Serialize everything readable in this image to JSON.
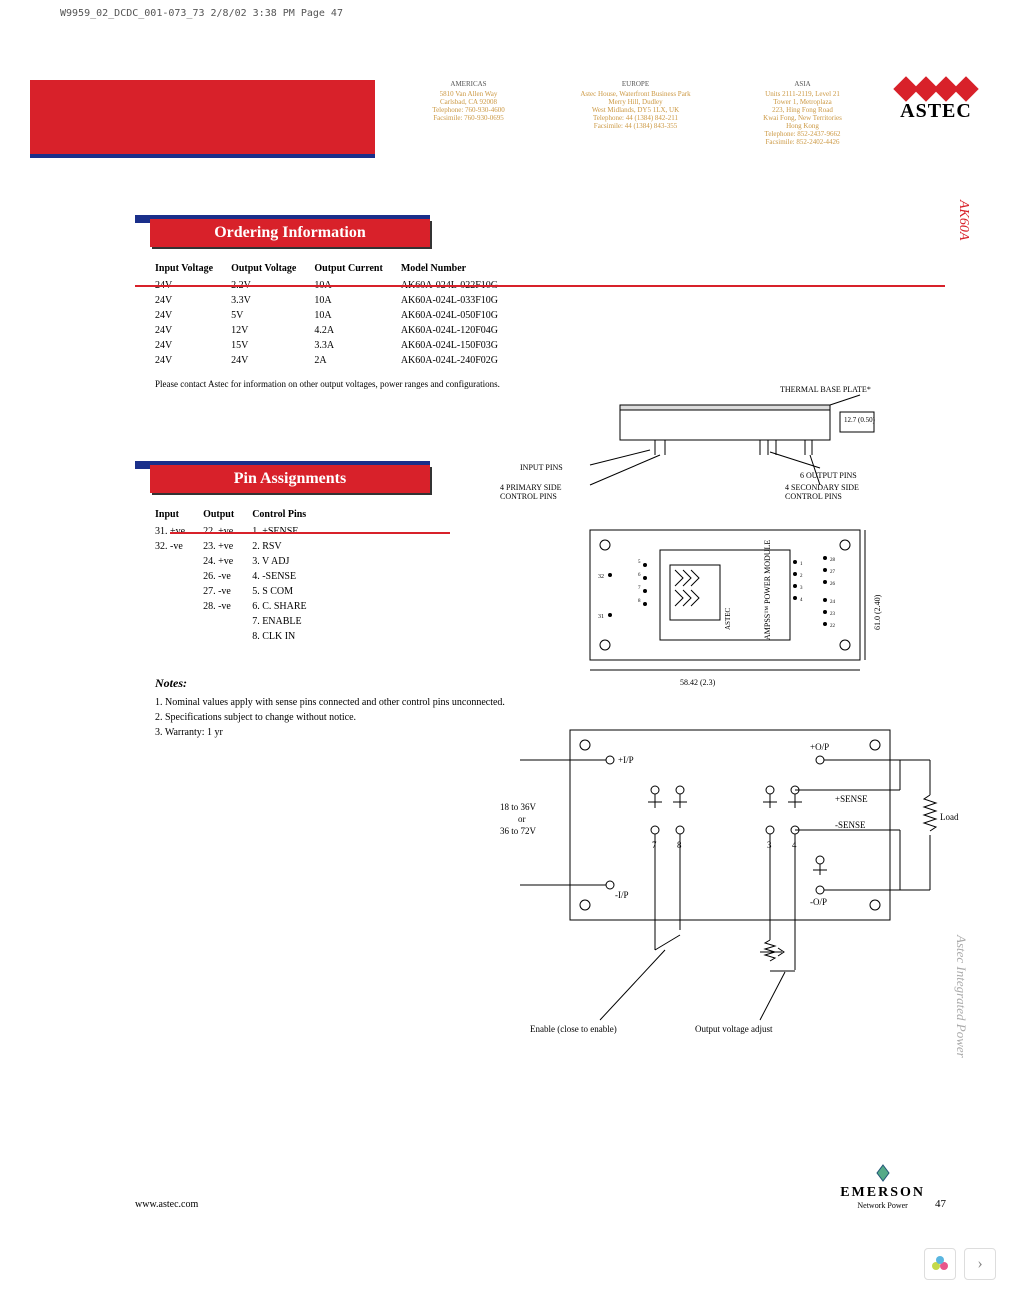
{
  "page_mark": "W9959_02_DCDC_001-073_73  2/8/02  3:38 PM  Page 47",
  "contacts": {
    "americas": {
      "hdr": "AMERICAS",
      "lines": [
        "5810 Van Allen Way",
        "Carlsbad, CA 92008",
        "Telephone: 760-930-4600",
        "Facsimile: 760-930-0695"
      ]
    },
    "europe": {
      "hdr": "EUROPE",
      "lines": [
        "Astec House, Waterfront Business Park",
        "Merry Hill, Dudley",
        "West Midlands, DY5 1LX, UK",
        "Telephone: 44 (1384) 842-211",
        "Facsimile: 44 (1384) 843-355"
      ]
    },
    "asia": {
      "hdr": "ASIA",
      "lines": [
        "Units 2111-2119, Level 21",
        "Tower 1, Metroplaza",
        "223, Hing Fong Road",
        "Kwai Fong, New Territories",
        "Hong Kong",
        "Telephone: 852-2437-9662",
        "Facsimile: 852-2402-4426"
      ]
    }
  },
  "logo_text": "ASTEC",
  "side_model": "AK60A",
  "side_brand": "Astec    Integrated    Power",
  "ordering": {
    "title": "Ordering Information",
    "cols": [
      "Input Voltage",
      "Output Voltage",
      "Output Current",
      "Model Number"
    ],
    "rows": [
      [
        "24V",
        "2.2V",
        "10A",
        "AK60A-024L-022F10G"
      ],
      [
        "24V",
        "3.3V",
        "10A",
        "AK60A-024L-033F10G"
      ],
      [
        "24V",
        "5V",
        "10A",
        "AK60A-024L-050F10G"
      ],
      [
        "24V",
        "12V",
        "4.2A",
        "AK60A-024L-120F04G"
      ],
      [
        "24V",
        "15V",
        "3.3A",
        "AK60A-024L-150F03G"
      ],
      [
        "24V",
        "24V",
        "2A",
        "AK60A-024L-240F02G"
      ]
    ],
    "footnote": "Please contact Astec for information on other output voltages, power ranges and configurations."
  },
  "pins": {
    "title": "Pin Assignments",
    "cols": [
      "Input",
      "Output",
      "Control Pins"
    ],
    "input": [
      "31. +ve",
      "32. -ve"
    ],
    "output": [
      "22. +ve",
      "23. +ve",
      "24. +ve",
      "26. -ve",
      "27. -ve",
      "28. -ve"
    ],
    "control": [
      "1. +SENSE",
      "2. RSV",
      "3. V ADJ",
      "4. -SENSE",
      "5. S COM",
      "6. C. SHARE",
      "7. ENABLE",
      "8. CLK IN"
    ]
  },
  "notes": {
    "title": "Notes:",
    "items": [
      "1. Nominal values apply with sense pins connected and other control pins unconnected.",
      "2. Specifications subject to change without notice.",
      "3. Warranty: 1 yr"
    ]
  },
  "dia1": {
    "thermal": "THERMAL BASE PLATE*",
    "input_pins": "INPUT PINS",
    "output_pins": "6 OUTPUT PINS",
    "primary": "4 PRIMARY SIDE CONTROL PINS",
    "secondary": "4 SECONDARY SIDE CONTROL PINS",
    "dim_h": "12.7 (0.50)"
  },
  "dia2": {
    "module": "AMPSS™ POWER MODULE",
    "dim_w": "58.42 (2.3)",
    "dim_h": "61.0 (2.40)"
  },
  "dia3": {
    "vin_range": "18 to 36V\nor\n36 to 72V",
    "ip_plus": "+I/P",
    "ip_minus": "-I/P",
    "op_plus": "+O/P",
    "op_minus": "-O/P",
    "sense_plus": "+SENSE",
    "sense_minus": "-SENSE",
    "load": "Load",
    "enable": "Enable (close to enable)",
    "vadj": "Output voltage adjust",
    "pin_labels": [
      "7",
      "8",
      "3",
      "4"
    ]
  },
  "footer": {
    "url": "www.astec.com",
    "emerson_big": "EMERSON",
    "emerson_sub": "Network Power",
    "page": "47"
  },
  "colors": {
    "red": "#d8212a",
    "blue": "#1a2f8a"
  }
}
